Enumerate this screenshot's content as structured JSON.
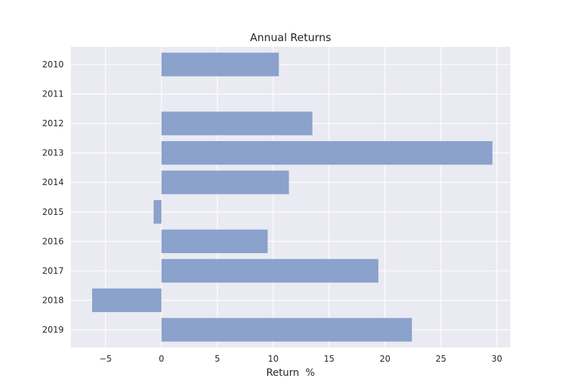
{
  "chart_data": {
    "type": "bar",
    "orientation": "horizontal",
    "title": "Annual Returns",
    "xlabel": "Return  %",
    "ylabel": "",
    "categories": [
      "2010",
      "2011",
      "2012",
      "2013",
      "2014",
      "2015",
      "2016",
      "2017",
      "2018",
      "2019"
    ],
    "values": [
      10.5,
      0,
      13.5,
      29.6,
      11.4,
      -0.7,
      9.5,
      19.4,
      -6.2,
      22.4
    ],
    "xlim": [
      -8.1,
      31.2
    ],
    "xticks": [
      "−5",
      "0",
      "5",
      "10",
      "15",
      "20",
      "25",
      "30"
    ],
    "xtick_values": [
      -5,
      0,
      5,
      10,
      15,
      20,
      25,
      30
    ],
    "grid": true,
    "bar_color": "#8aa2cc",
    "background_color": "#eaeaf2",
    "grid_color": "#ffffff"
  }
}
